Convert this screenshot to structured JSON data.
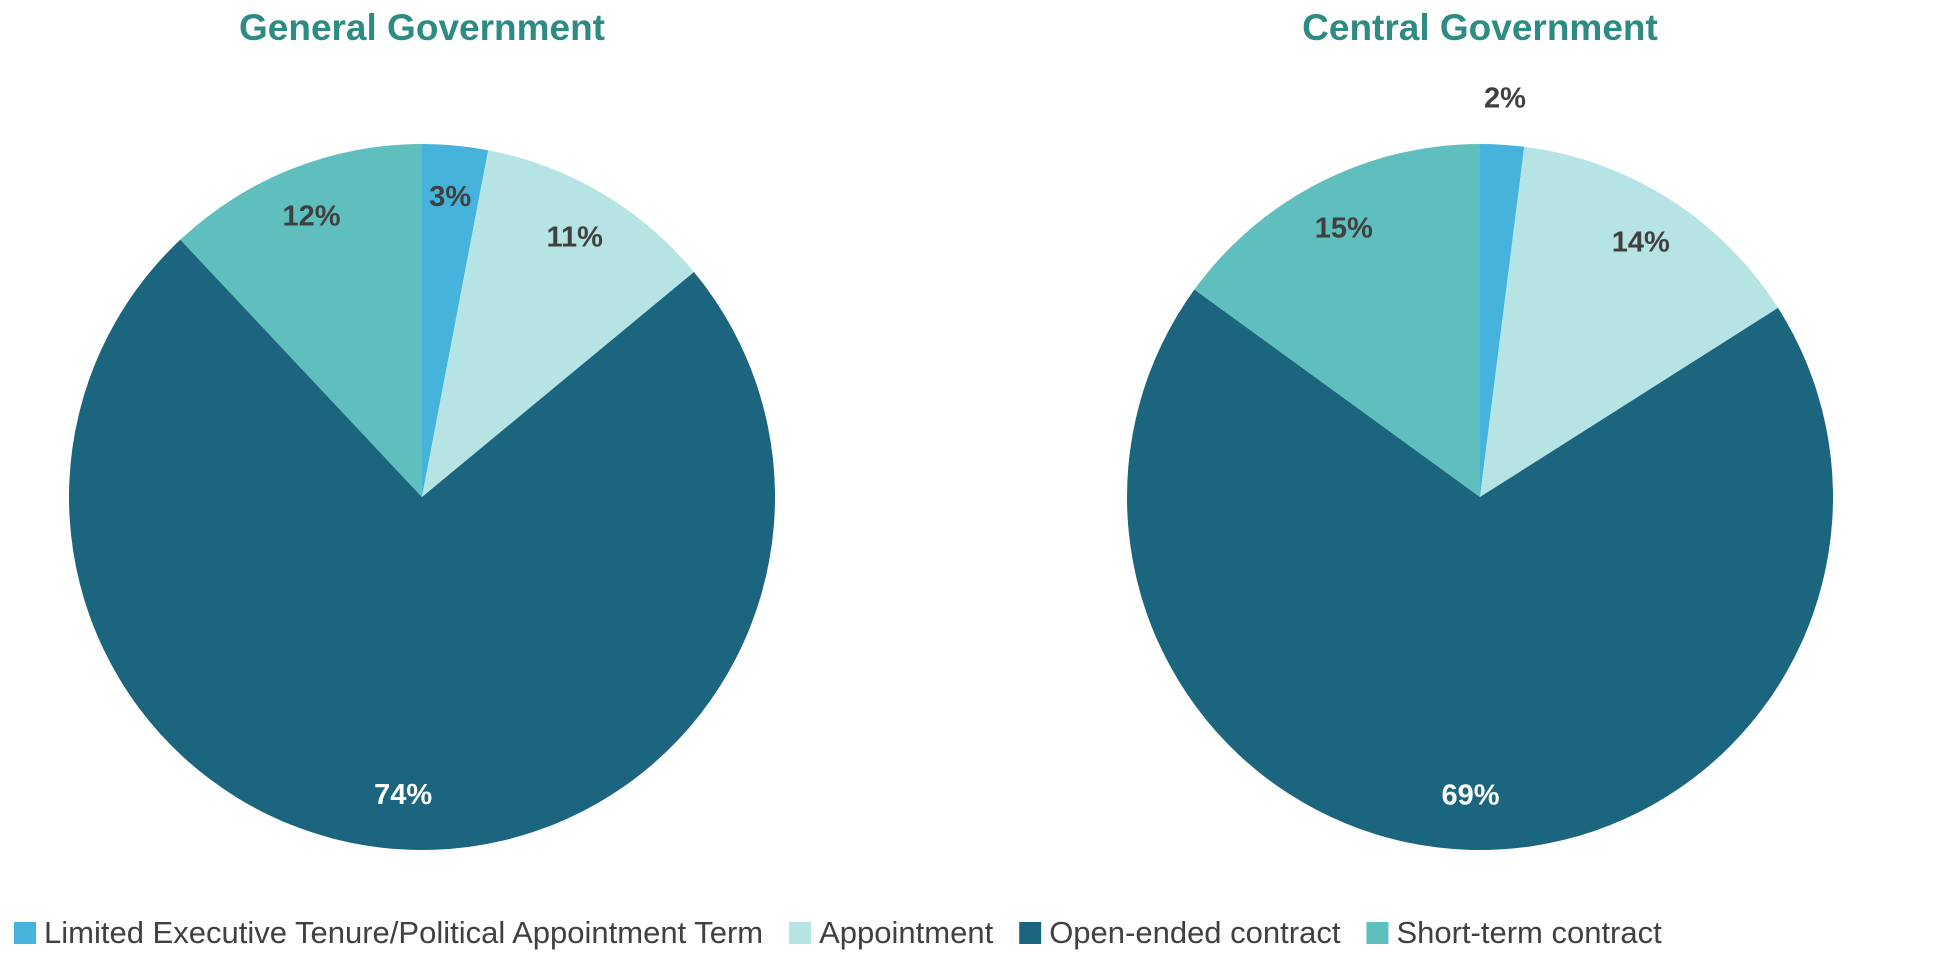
{
  "chart_data": [
    {
      "type": "pie",
      "title": "General Government",
      "values": [
        3,
        11,
        74,
        12
      ],
      "value_labels": [
        "3%",
        "11%",
        "74%",
        "12%"
      ]
    },
    {
      "type": "pie",
      "title": "Central Government",
      "values": [
        2,
        14,
        69,
        15
      ],
      "value_labels": [
        "2%",
        "14%",
        "69%",
        "15%"
      ]
    }
  ],
  "legend": {
    "categories": [
      "Limited Executive Tenure/Political Appointment Term",
      "Appointment",
      "Open-ended contract",
      "Short-term contract"
    ],
    "colors": [
      "#45b3dc",
      "#b6e3e3",
      "#1b657e",
      "#5fbfbf"
    ]
  }
}
